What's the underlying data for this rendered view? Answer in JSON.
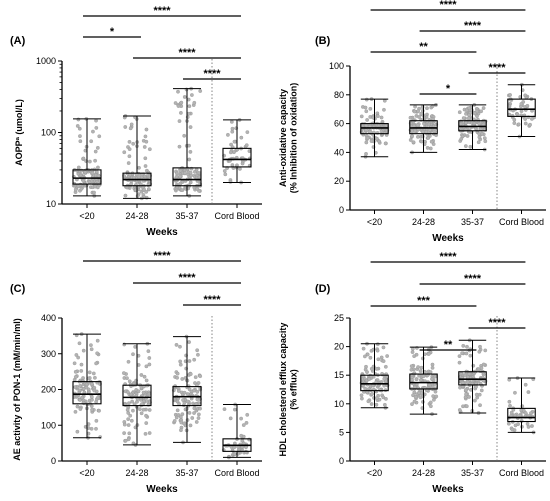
{
  "chart_data": [
    {
      "type": "box",
      "panel_label": "(A)",
      "ylabel": "AOPPª (umol/L)",
      "xlabel": "Weeks",
      "yscale": "log",
      "ylim": [
        10,
        1000
      ],
      "yticks": [
        10,
        100,
        1000
      ],
      "categories": [
        "<20",
        "24-28",
        "35-37",
        "Cord Blood"
      ],
      "boxes": [
        {
          "min": 13,
          "q1": 19,
          "median": 23,
          "q3": 30,
          "max": 155
        },
        {
          "min": 12,
          "q1": 18,
          "median": 22,
          "q3": 27,
          "max": 170
        },
        {
          "min": 13,
          "q1": 18,
          "median": 22,
          "q3": 32,
          "max": 410
        },
        {
          "min": 20,
          "q1": 33,
          "median": 42,
          "q3": 60,
          "max": 150
        }
      ],
      "significance": [
        {
          "from": 0,
          "to": 3,
          "label": "****"
        },
        {
          "from": 0,
          "to": 1,
          "label": "*"
        },
        {
          "from": 1,
          "to": 3,
          "label": "****"
        },
        {
          "from": 2,
          "to": 3,
          "label": "****"
        }
      ]
    },
    {
      "type": "box",
      "panel_label": "(B)",
      "ylabel": "Anti-oxidative capacity\n(% Inhibition of oxidation)",
      "xlabel": "Weeks",
      "ylim": [
        0,
        100
      ],
      "yticks": [
        0,
        20,
        40,
        60,
        80,
        100
      ],
      "categories": [
        "<20",
        "24-28",
        "35-37",
        "Cord Blood"
      ],
      "boxes": [
        {
          "min": 37,
          "q1": 53,
          "median": 57,
          "q3": 60,
          "max": 77
        },
        {
          "min": 40,
          "q1": 53,
          "median": 57,
          "q3": 62,
          "max": 73
        },
        {
          "min": 42,
          "q1": 55,
          "median": 58,
          "q3": 62,
          "max": 73
        },
        {
          "min": 51,
          "q1": 65,
          "median": 70,
          "q3": 77,
          "max": 87
        }
      ],
      "significance": [
        {
          "from": 0,
          "to": 3,
          "label": "****"
        },
        {
          "from": 1,
          "to": 3,
          "label": "****"
        },
        {
          "from": 0,
          "to": 2,
          "label": "**"
        },
        {
          "from": 2,
          "to": 3,
          "label": "****"
        },
        {
          "from": 1,
          "to": 2,
          "label": "*"
        }
      ]
    },
    {
      "type": "box",
      "panel_label": "(C)",
      "ylabel": "AE activity of PON-1 (mM/min/ml)",
      "xlabel": "Weeks",
      "ylim": [
        0,
        400
      ],
      "yticks": [
        0,
        100,
        200,
        300,
        400
      ],
      "categories": [
        "<20",
        "24-28",
        "35-37",
        "Cord Blood"
      ],
      "boxes": [
        {
          "min": 65,
          "q1": 160,
          "median": 187,
          "q3": 222,
          "max": 355
        },
        {
          "min": 45,
          "q1": 155,
          "median": 178,
          "q3": 212,
          "max": 328
        },
        {
          "min": 52,
          "q1": 155,
          "median": 180,
          "q3": 208,
          "max": 348
        },
        {
          "min": 10,
          "q1": 27,
          "median": 44,
          "q3": 62,
          "max": 158
        }
      ],
      "significance": [
        {
          "from": 0,
          "to": 3,
          "label": "****"
        },
        {
          "from": 1,
          "to": 3,
          "label": "****"
        },
        {
          "from": 2,
          "to": 3,
          "label": "****"
        }
      ]
    },
    {
      "type": "box",
      "panel_label": "(D)",
      "ylabel": "HDL cholesterol efflux capacity\n(% efflux)",
      "xlabel": "Weeks",
      "ylim": [
        0,
        25
      ],
      "yticks": [
        0,
        5,
        10,
        15,
        20,
        25
      ],
      "categories": [
        "<20",
        "24-28",
        "35-37",
        "Cord Blood"
      ],
      "boxes": [
        {
          "min": 9.3,
          "q1": 12.3,
          "median": 13.5,
          "q3": 15.0,
          "max": 20.5
        },
        {
          "min": 8.2,
          "q1": 12.6,
          "median": 13.7,
          "q3": 15.2,
          "max": 19.9
        },
        {
          "min": 8.4,
          "q1": 13.3,
          "median": 14.3,
          "q3": 15.6,
          "max": 21.1
        },
        {
          "min": 5.0,
          "q1": 6.9,
          "median": 7.6,
          "q3": 9.2,
          "max": 14.5
        }
      ],
      "significance": [
        {
          "from": 0,
          "to": 3,
          "label": "****"
        },
        {
          "from": 1,
          "to": 3,
          "label": "****"
        },
        {
          "from": 0,
          "to": 2,
          "label": "***"
        },
        {
          "from": 2,
          "to": 3,
          "label": "****"
        },
        {
          "from": 1,
          "to": 2,
          "label": "**"
        }
      ]
    }
  ]
}
